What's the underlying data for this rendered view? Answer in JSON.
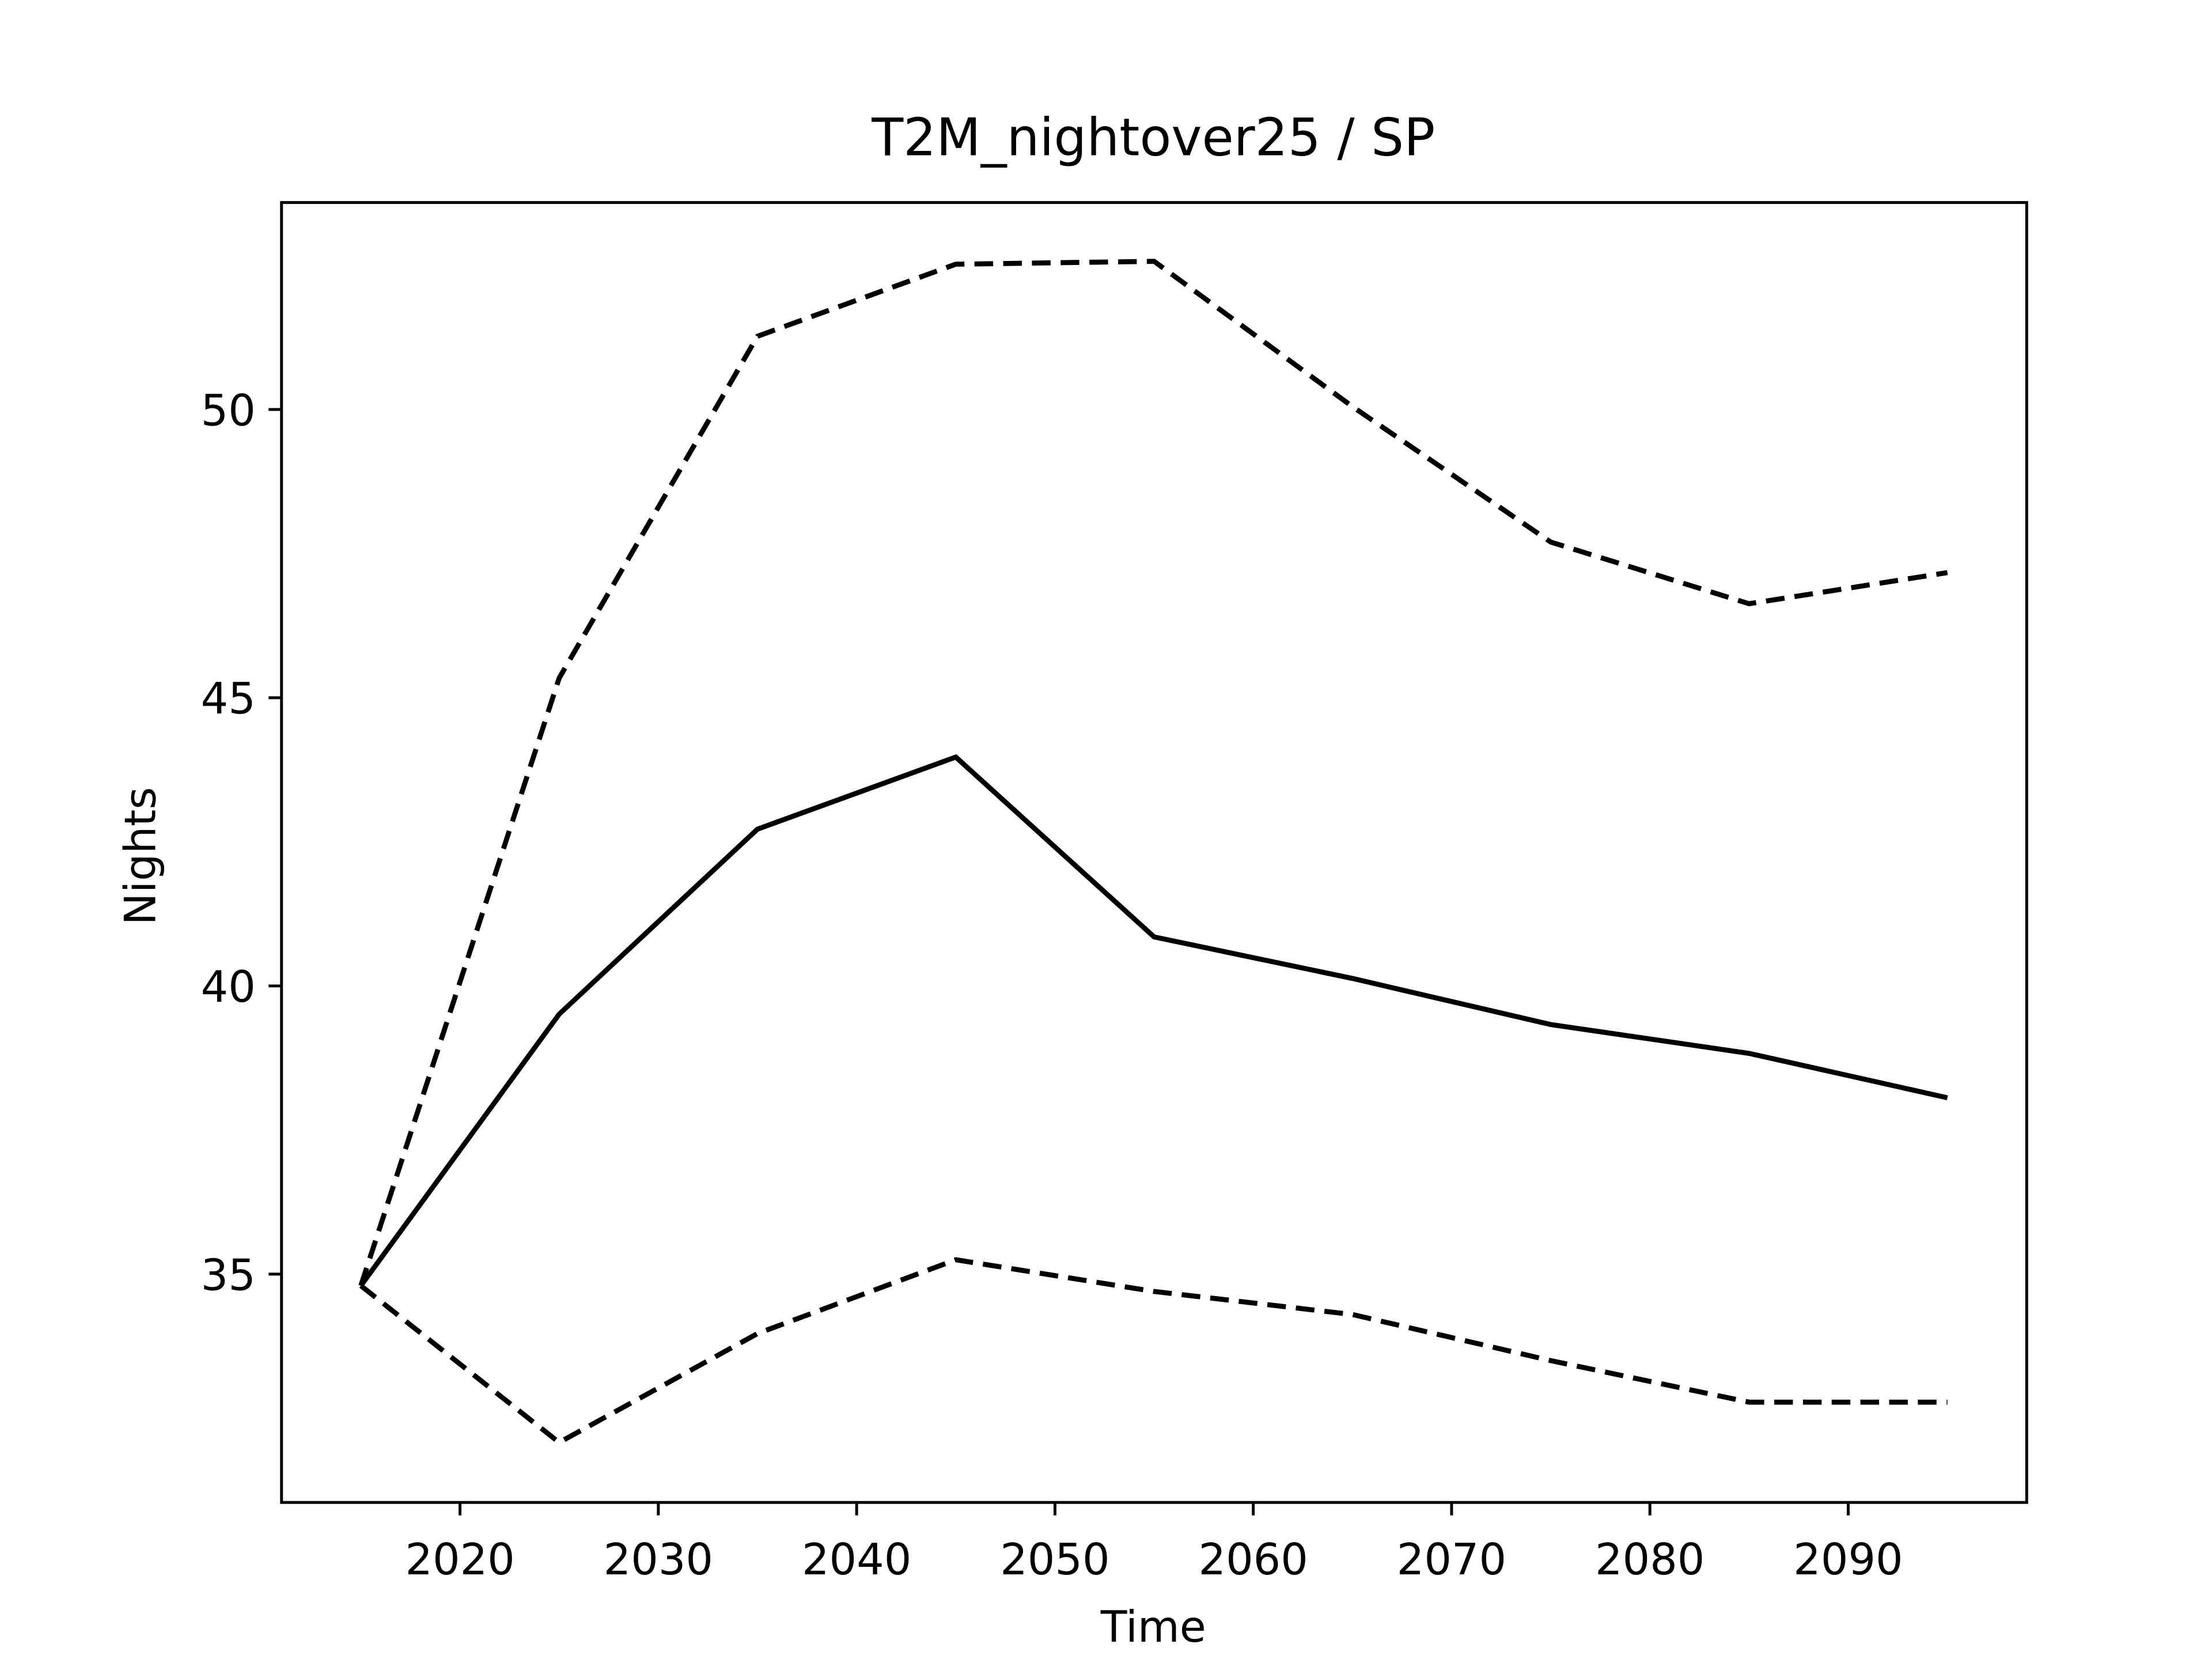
{
  "chart_data": {
    "type": "line",
    "title": "T2M_nightover25 / SP",
    "xlabel": "Time",
    "ylabel": "Nights",
    "x": [
      2015,
      2025,
      2035,
      2045,
      2055,
      2065,
      2075,
      2085,
      2095
    ],
    "series": [
      {
        "color": "#000000",
        "dashed": false,
        "values": [
          34.8,
          39.51,
          42.72,
          43.97,
          40.85,
          40.13,
          39.33,
          38.83,
          38.06
        ]
      },
      {
        "color": "#000000",
        "dashed": true,
        "values": [
          34.8,
          45.34,
          51.27,
          52.52,
          52.57,
          50.05,
          47.7,
          46.63,
          47.17
        ]
      },
      {
        "color": "#000000",
        "dashed": true,
        "values": [
          34.8,
          32.08,
          33.97,
          35.25,
          34.7,
          34.3,
          33.5,
          32.78,
          32.78
        ]
      }
    ],
    "xlim": [
      2011,
      2099
    ],
    "xticks": [
      2020,
      2030,
      2040,
      2050,
      2060,
      2070,
      2080,
      2090
    ],
    "ylim": [
      31.04,
      53.59
    ],
    "yticks": [
      35,
      40,
      45,
      50
    ],
    "grid": false
  }
}
